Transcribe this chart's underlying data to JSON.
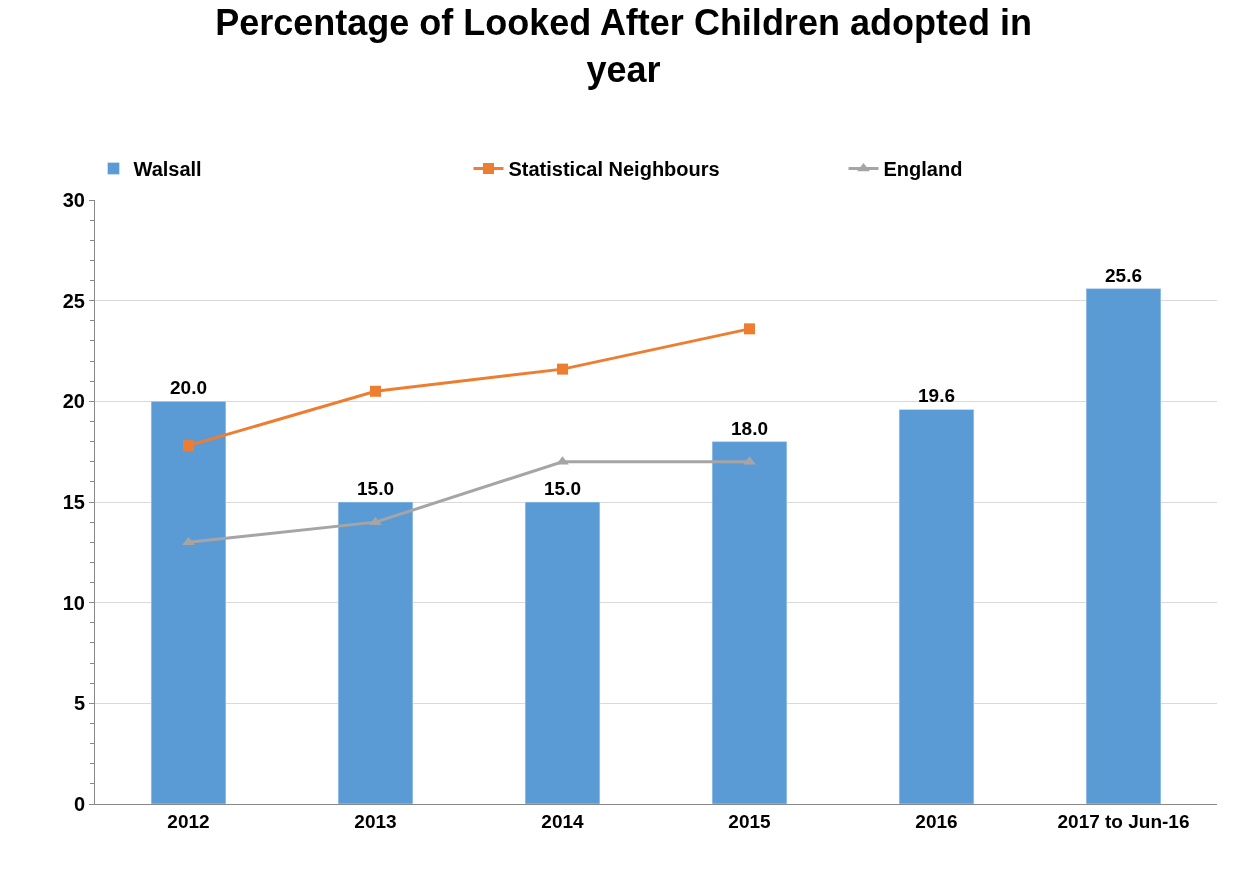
{
  "chart_data": {
    "type": "bar",
    "title": "Percentage of Looked After Children adopted in year",
    "categories": [
      "2012",
      "2013",
      "2014",
      "2015",
      "2016",
      "2017 to Jun-16"
    ],
    "series": [
      {
        "name": "Walsall",
        "color": "#5b9bd5",
        "values": [
          20.0,
          15.0,
          15.0,
          18.0,
          19.6,
          25.6
        ],
        "value_labels": [
          "20.0",
          "15.0",
          "15.0",
          "18.0",
          "19.6",
          "25.6"
        ]
      },
      {
        "name": "Statistical Neighbours",
        "type": "line",
        "color": "#ed7d31",
        "marker": "square",
        "values": [
          17.8,
          20.5,
          21.6,
          23.6,
          null,
          null
        ]
      },
      {
        "name": "England",
        "type": "line",
        "color": "#a5a5a5",
        "marker": "triangle",
        "values": [
          13.0,
          14.0,
          17.0,
          17.0,
          null,
          null
        ]
      }
    ],
    "ylim": [
      0,
      30
    ],
    "yticks": [
      0,
      5,
      10,
      15,
      20,
      25,
      30
    ],
    "grid": "y",
    "legend": "top"
  }
}
